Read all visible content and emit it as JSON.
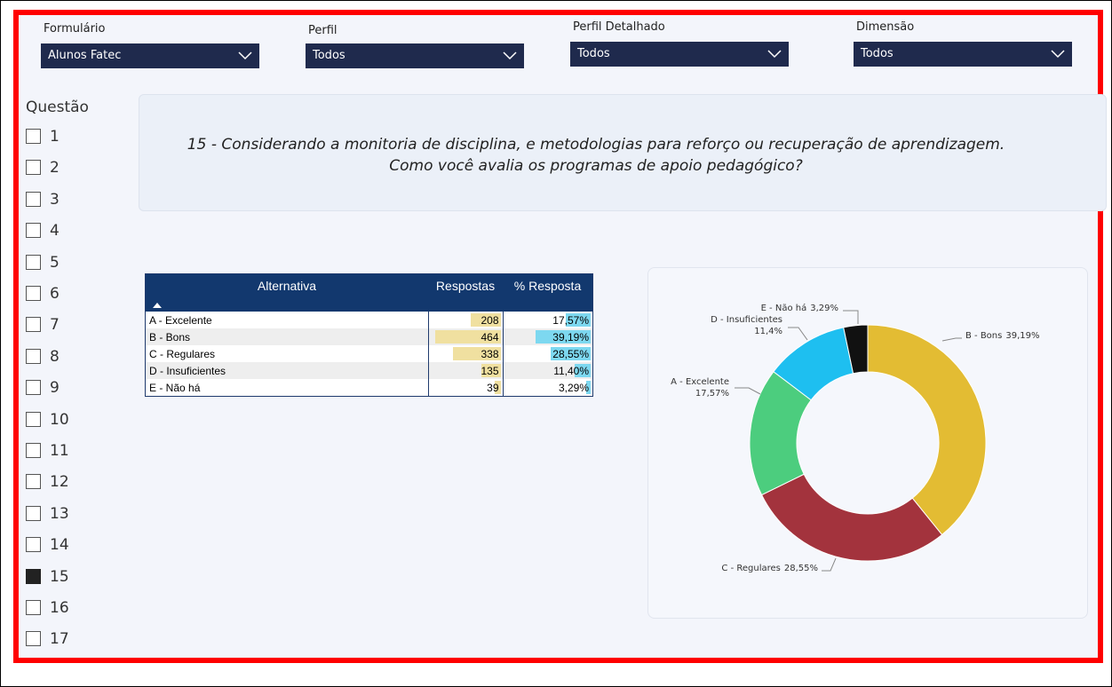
{
  "filters": [
    {
      "label": "Formulário",
      "value": "Alunos Fatec"
    },
    {
      "label": "Perfil",
      "value": "Todos"
    },
    {
      "label": "Perfil Detalhado",
      "value": "Todos"
    },
    {
      "label": "Dimensão",
      "value": "Todos"
    }
  ],
  "question_list": {
    "title": "Questão",
    "items": [
      "1",
      "2",
      "3",
      "4",
      "5",
      "6",
      "7",
      "8",
      "9",
      "10",
      "11",
      "12",
      "13",
      "14",
      "15",
      "16",
      "17"
    ],
    "selected": "15"
  },
  "question_text": [
    "15 - Considerando a monitoria de disciplina, e metodologias para reforço ou recuperação de aprendizagem.",
    "Como você avalia os programas de apoio pedagógico?"
  ],
  "table": {
    "columns": [
      "Alternativa",
      "Respostas",
      "% Resposta"
    ],
    "rows": [
      {
        "alternativa": "A - Excelente",
        "respostas": 208,
        "percent": 17.57,
        "percent_label": "17,57%"
      },
      {
        "alternativa": "B - Bons",
        "respostas": 464,
        "percent": 39.19,
        "percent_label": "39,19%"
      },
      {
        "alternativa": "C - Regulares",
        "respostas": 338,
        "percent": 28.55,
        "percent_label": "28,55%"
      },
      {
        "alternativa": "D - Insuficientes",
        "respostas": 135,
        "percent": 11.4,
        "percent_label": "11,40%"
      },
      {
        "alternativa": "E - Não há",
        "respostas": 39,
        "percent": 3.29,
        "percent_label": "3,29%"
      }
    ]
  },
  "chart_data": {
    "type": "donut",
    "categories": [
      "B - Bons",
      "C - Regulares",
      "A - Excelente",
      "D - Insuficientes",
      "E - Não há"
    ],
    "values": [
      39.19,
      28.55,
      17.57,
      11.4,
      3.29
    ],
    "value_labels": [
      "39,19%",
      "28,55%",
      "17,57%",
      "11,4%",
      "3,29%"
    ],
    "colors": [
      "#e3bc33",
      "#a3333d",
      "#4ccd7e",
      "#1ebff0",
      "#111111"
    ]
  }
}
